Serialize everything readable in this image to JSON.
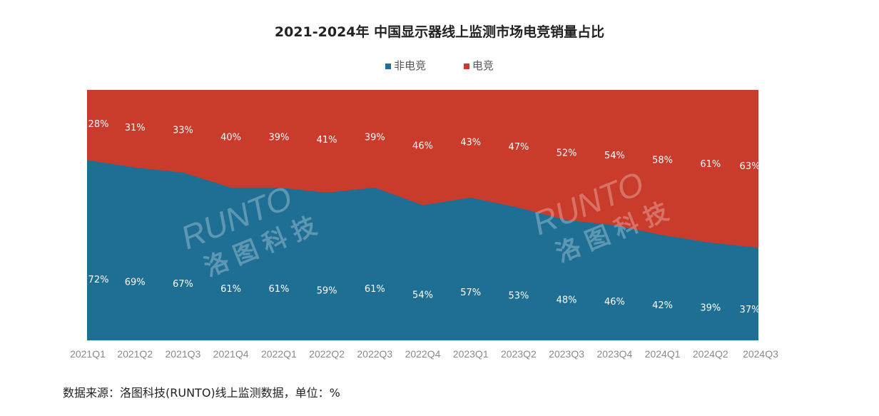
{
  "chart_data": {
    "type": "area",
    "stacked": true,
    "percent": true,
    "title": "2021-2024年 中国显示器线上监测市场电竞销量占比",
    "categories": [
      "2021Q1",
      "2021Q2",
      "2021Q3",
      "2021Q4",
      "2022Q1",
      "2022Q2",
      "2022Q3",
      "2022Q4",
      "2023Q1",
      "2023Q2",
      "2023Q3",
      "2023Q4",
      "2024Q1",
      "2024Q2",
      "2024Q3"
    ],
    "series": [
      {
        "name": "非电竞",
        "color": "#1f6f95",
        "values": [
          72,
          69,
          67,
          61,
          61,
          59,
          61,
          54,
          57,
          53,
          48,
          46,
          42,
          39,
          37
        ],
        "labels": [
          "72%",
          "69%",
          "67%",
          "61%",
          "61%",
          "59%",
          "61%",
          "54%",
          "57%",
          "53%",
          "48%",
          "46%",
          "42%",
          "39%",
          "37%"
        ]
      },
      {
        "name": "电竞",
        "color": "#c93b2b",
        "values": [
          28,
          31,
          33,
          40,
          39,
          41,
          39,
          46,
          43,
          47,
          52,
          54,
          58,
          61,
          63
        ],
        "labels": [
          "28%",
          "31%",
          "33%",
          "40%",
          "39%",
          "41%",
          "39%",
          "46%",
          "43%",
          "47%",
          "52%",
          "54%",
          "58%",
          "61%",
          "63%"
        ]
      }
    ],
    "ylim": [
      0,
      100
    ],
    "legend_position": "top-center",
    "grid": false
  },
  "watermark": [
    "RUNTO",
    "洛图科技",
    "RUNTO",
    "洛图科技"
  ],
  "source_note": "数据来源：洛图科技(RUNTO)线上监测数据，单位：%"
}
